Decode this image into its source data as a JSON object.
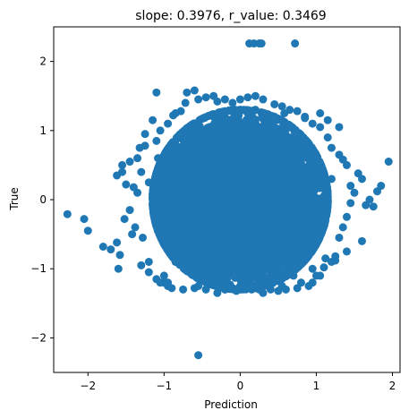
{
  "chart_data": {
    "type": "scatter",
    "title": "slope: 0.3976, r_value: 0.3469",
    "xlabel": "Prediction",
    "ylabel": "True",
    "xlim": [
      -2.45,
      2.1
    ],
    "ylim": [
      -2.5,
      2.5
    ],
    "xticks": [
      -2,
      -1,
      0,
      1,
      2
    ],
    "yticks": [
      -2,
      -1,
      0,
      1,
      2
    ],
    "xtick_labels": [
      "−2",
      "−1",
      "0",
      "1",
      "2"
    ],
    "ytick_labels": [
      "−2",
      "−1",
      "0",
      "1",
      "2"
    ],
    "grid": false,
    "marker_color": "#1f77b4",
    "series": [
      {
        "x": [
          -2.27,
          -2.05,
          -2.0,
          -1.8,
          -1.7,
          -1.62,
          -1.58,
          -1.6,
          -1.55,
          -1.62,
          -1.55,
          -1.45,
          -1.4,
          -1.35,
          -1.5,
          -1.38,
          -1.42,
          -1.45,
          -1.52,
          -1.32,
          -1.25,
          -1.28,
          -1.2,
          -1.1,
          -1.05,
          -0.95,
          -0.88,
          -0.85,
          -0.78,
          -0.72,
          -0.7,
          -0.6,
          -0.55,
          -0.45,
          -0.35,
          -0.3,
          -0.2,
          -0.1,
          0.0,
          0.1,
          0.2,
          0.3,
          0.45,
          0.55,
          0.65,
          0.75,
          0.85,
          0.95,
          1.05,
          1.15,
          1.2,
          1.3,
          1.35,
          1.4,
          1.45,
          1.5,
          1.55,
          1.6,
          1.65,
          1.7,
          1.75,
          1.8,
          1.85,
          1.95,
          1.6,
          1.4,
          1.25,
          1.1,
          1.05,
          0.95,
          0.9,
          0.75,
          0.6,
          0.5,
          0.4,
          0.3,
          0.15,
          0.05,
          -0.05,
          -0.2,
          -0.3,
          -0.45,
          -0.6,
          -0.75,
          -0.9,
          -1.0,
          -1.1,
          -1.2,
          -1.3,
          -1.05,
          -0.95,
          -1.15,
          -1.25,
          -1.35,
          -1.3,
          -1.2,
          1.25,
          1.35,
          1.4,
          1.45,
          1.3,
          1.2,
          0.12,
          0.18,
          0.25,
          0.28,
          0.72,
          -0.55,
          -1.1,
          -0.62,
          -0.35,
          -0.2,
          0.2,
          0.45,
          0.58,
          0.85,
          1.05,
          1.15,
          1.3,
          -1.0,
          -0.95,
          -1.08,
          -0.9,
          -0.82,
          -0.55,
          -0.2,
          0.0,
          0.25,
          0.55,
          0.8,
          1.0,
          1.2,
          -0.85,
          -0.65,
          -0.3,
          0.1,
          0.4,
          0.7,
          0.95,
          1.12
        ],
        "y": [
          -0.21,
          -0.28,
          -0.45,
          -0.68,
          -0.72,
          -0.62,
          -0.8,
          -1.0,
          0.5,
          0.35,
          0.4,
          0.55,
          0.18,
          0.1,
          0.22,
          -0.4,
          -0.5,
          -0.15,
          -0.28,
          0.75,
          0.78,
          -0.55,
          -0.9,
          0.85,
          1.0,
          1.1,
          1.22,
          1.25,
          1.28,
          1.4,
          1.55,
          1.58,
          1.45,
          1.48,
          1.5,
          1.42,
          1.45,
          1.4,
          1.45,
          1.48,
          1.5,
          1.45,
          1.38,
          1.35,
          1.3,
          1.28,
          1.2,
          1.1,
          1.05,
          0.9,
          0.75,
          0.65,
          0.58,
          0.5,
          0.2,
          0.1,
          0.38,
          0.3,
          -0.08,
          0.0,
          -0.1,
          0.12,
          0.2,
          0.55,
          -0.6,
          -0.75,
          -0.88,
          -0.98,
          -1.1,
          -1.2,
          -1.25,
          -1.28,
          -1.3,
          -1.32,
          -1.3,
          -1.35,
          -1.3,
          -1.28,
          -1.32,
          -1.3,
          -1.35,
          -1.3,
          -1.28,
          -1.3,
          -1.28,
          -1.2,
          -1.15,
          -1.05,
          -0.95,
          -1.2,
          -1.25,
          1.15,
          0.95,
          0.6,
          0.4,
          0.25,
          -0.82,
          -0.4,
          -0.25,
          -0.05,
          -0.55,
          0.3,
          2.26,
          2.26,
          2.26,
          2.26,
          2.26,
          -2.25,
          1.55,
          1.0,
          1.2,
          1.25,
          1.3,
          1.2,
          1.25,
          1.18,
          1.25,
          1.15,
          1.05,
          -1.1,
          -1.2,
          0.6,
          0.4,
          -0.7,
          -1.25,
          -1.3,
          -1.25,
          -1.3,
          -1.25,
          -1.2,
          -1.1,
          -0.9,
          -0.9,
          -1.0,
          -1.1,
          -1.2,
          -1.2,
          -1.1,
          -1.0,
          -0.85
        ]
      }
    ],
    "cloud": {
      "description_center": [
        0.0,
        0.0
      ],
      "x_std": 0.5,
      "y_std": 0.5,
      "count": 9000
    }
  }
}
